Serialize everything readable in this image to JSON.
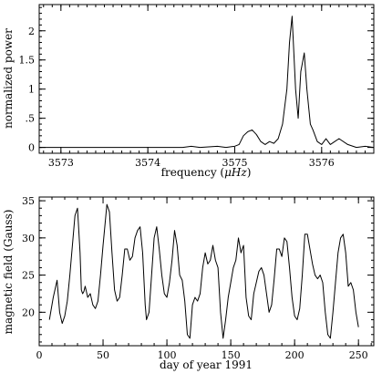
{
  "chart_data": [
    {
      "type": "line",
      "title": "",
      "xlabel_prefix": "frequency (",
      "xlabel_unit": "μHz",
      "xlabel_suffix": ")",
      "ylabel": "normalized power",
      "xlim": [
        3572.75,
        3576.6
      ],
      "ylim": [
        -0.1,
        2.45
      ],
      "xticks": [
        3573,
        3574,
        3575,
        3576
      ],
      "yticks": [
        0,
        0.5,
        1,
        1.5,
        2
      ],
      "ytick_labels": [
        "0",
        ".5",
        "1",
        "1.5",
        "2"
      ],
      "x_minor_step": 0.1,
      "y_minor_step": 0.1,
      "grid": false,
      "series": [
        {
          "x": [
            3572.75,
            3574.4,
            3574.5,
            3574.6,
            3574.8,
            3574.9,
            3575.0,
            3575.05,
            3575.1,
            3575.15,
            3575.2,
            3575.25,
            3575.3,
            3575.35,
            3575.4,
            3575.45,
            3575.5,
            3575.55,
            3575.6,
            3575.63,
            3575.66,
            3575.7,
            3575.73,
            3575.76,
            3575.8,
            3575.83,
            3575.87,
            3575.9,
            3575.95,
            3576.0,
            3576.05,
            3576.1,
            3576.15,
            3576.2,
            3576.3,
            3576.4,
            3576.5,
            3576.6
          ],
          "y": [
            0.0,
            0.0,
            0.02,
            0.0,
            0.02,
            0.0,
            0.02,
            0.05,
            0.2,
            0.27,
            0.3,
            0.22,
            0.1,
            0.05,
            0.1,
            0.07,
            0.15,
            0.4,
            1.0,
            1.8,
            2.25,
            1.0,
            0.5,
            1.3,
            1.62,
            1.0,
            0.4,
            0.3,
            0.1,
            0.05,
            0.15,
            0.05,
            0.1,
            0.15,
            0.05,
            0.0,
            0.02,
            0.0
          ]
        }
      ]
    },
    {
      "type": "line",
      "title": "",
      "xlabel": "day of year 1991",
      "ylabel": "magnetic field (Gauss)",
      "xlim": [
        0,
        262
      ],
      "ylim": [
        15.5,
        35.5
      ],
      "xticks": [
        0,
        50,
        100,
        150,
        200,
        250
      ],
      "yticks": [
        20,
        25,
        30,
        35
      ],
      "x_minor_step": 10,
      "y_minor_step": 1,
      "grid": false,
      "series": [
        {
          "x": [
            8,
            11,
            14,
            16,
            18,
            20,
            22,
            24,
            26,
            28,
            30,
            32,
            33,
            34,
            35,
            36,
            38,
            40,
            42,
            44,
            46,
            48,
            50,
            53,
            55,
            57,
            59,
            61,
            63,
            65,
            67,
            69,
            71,
            73,
            75,
            77,
            79,
            81,
            83,
            84,
            86,
            88,
            90,
            92,
            94,
            96,
            98,
            100,
            102,
            104,
            106,
            108,
            110,
            112,
            114,
            116,
            118,
            120,
            122,
            124,
            126,
            128,
            130,
            132,
            134,
            136,
            138,
            140,
            142,
            144,
            146,
            148,
            150,
            152,
            154,
            156,
            158,
            160,
            162,
            164,
            166,
            168,
            170,
            172,
            174,
            176,
            178,
            180,
            182,
            184,
            186,
            188,
            190,
            192,
            194,
            196,
            198,
            200,
            202,
            204,
            206,
            208,
            210,
            212,
            214,
            216,
            218,
            220,
            222,
            224,
            226,
            228,
            230,
            232,
            234,
            236,
            238,
            240,
            242,
            244,
            246,
            248,
            250
          ],
          "y": [
            19,
            22,
            24.3,
            20,
            18.5,
            19.5,
            21.5,
            25,
            29,
            33,
            34,
            28,
            23,
            22.5,
            22.8,
            23.5,
            22,
            22.5,
            21,
            20.5,
            21.5,
            25,
            29,
            34.5,
            33.5,
            28,
            23,
            21.5,
            22,
            25,
            28.5,
            28.5,
            27,
            27.5,
            30,
            31,
            31.5,
            28,
            21,
            19,
            20,
            25,
            30,
            31.5,
            28.5,
            25,
            22.5,
            22,
            24,
            27,
            31,
            29,
            25,
            24.3,
            21.5,
            17,
            16.5,
            21,
            22,
            21.5,
            22.5,
            26,
            28,
            26.5,
            27,
            29,
            27,
            26,
            20,
            16.5,
            19,
            22,
            24,
            26,
            27,
            30,
            28,
            29,
            22,
            19.5,
            19,
            22.5,
            24,
            25.5,
            26,
            25,
            22.5,
            20,
            21,
            24.5,
            28.5,
            28.5,
            27.5,
            30,
            29.5,
            26,
            22,
            19.5,
            19,
            20.5,
            25,
            30.5,
            30.5,
            28.5,
            26.5,
            25,
            24.5,
            25,
            24,
            20,
            17,
            16.5,
            20,
            24,
            28,
            30,
            30.5,
            28,
            23.5,
            24,
            23,
            20,
            18
          ]
        }
      ]
    }
  ]
}
